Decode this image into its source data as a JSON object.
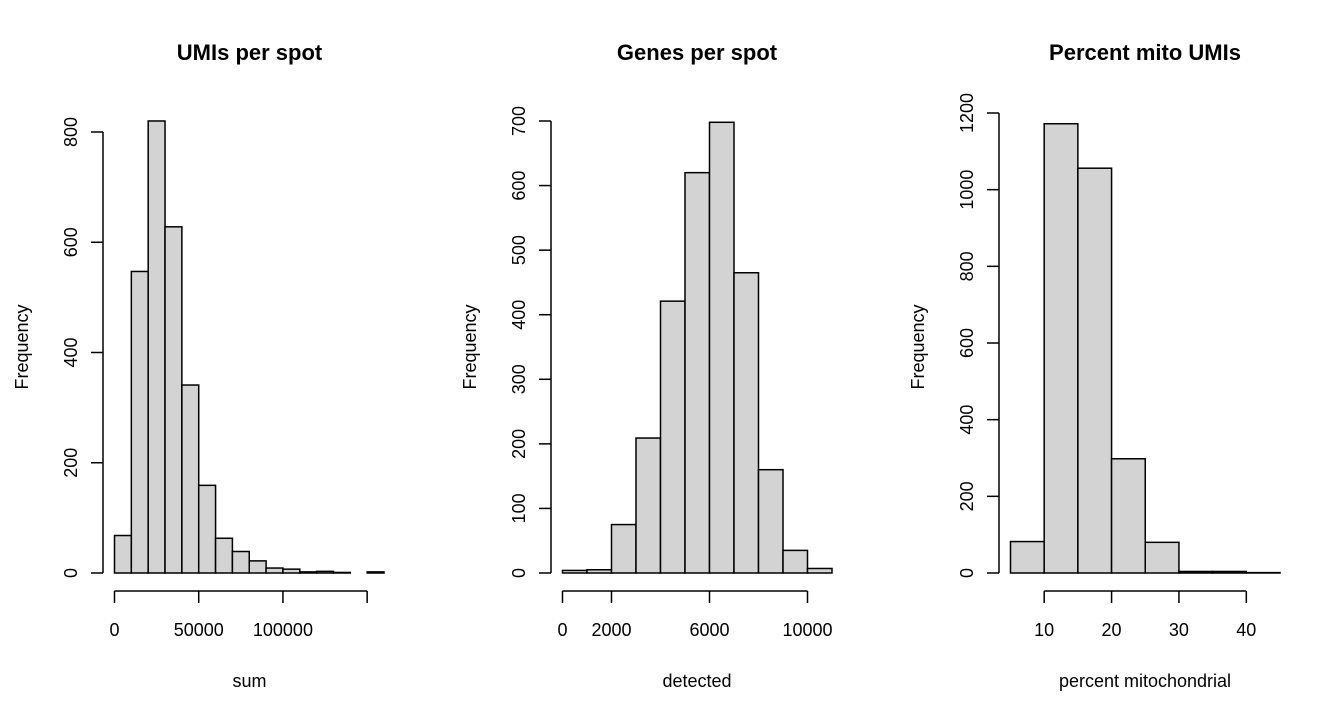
{
  "chart_data": [
    {
      "type": "bar",
      "title": "UMIs per spot",
      "xlabel": "sum",
      "ylabel": "Frequency",
      "bin_edges": [
        0,
        10000,
        20000,
        30000,
        40000,
        50000,
        60000,
        70000,
        80000,
        90000,
        100000,
        110000,
        120000,
        130000,
        140000,
        150000,
        160000
      ],
      "values": [
        68,
        547,
        820,
        628,
        341,
        159,
        63,
        39,
        22,
        9,
        7,
        2,
        3,
        1,
        0,
        2
      ],
      "x_ticks": [
        0,
        50000,
        100000,
        150000
      ],
      "x_tick_labels": [
        "0",
        "50000",
        "100000",
        ""
      ],
      "y_ticks": [
        0,
        200,
        400,
        600,
        800
      ],
      "y_tick_labels": [
        "0",
        "200",
        "400",
        "600",
        "800"
      ],
      "xlim": [
        0,
        160000
      ],
      "ylim": [
        0,
        800
      ],
      "grid": false
    },
    {
      "type": "bar",
      "title": "Genes per spot",
      "xlabel": "detected",
      "ylabel": "Frequency",
      "bin_edges": [
        0,
        1000,
        2000,
        3000,
        4000,
        5000,
        6000,
        7000,
        8000,
        9000,
        10000,
        11000
      ],
      "values": [
        4,
        5,
        75,
        209,
        421,
        620,
        698,
        465,
        160,
        35,
        7
      ],
      "x_ticks": [
        0,
        2000,
        6000,
        10000
      ],
      "x_tick_labels": [
        "0",
        "2000",
        "6000",
        "10000"
      ],
      "y_ticks": [
        0,
        100,
        200,
        300,
        400,
        500,
        600,
        700
      ],
      "y_tick_labels": [
        "0",
        "100",
        "200",
        "300",
        "400",
        "500",
        "600",
        "700"
      ],
      "xlim": [
        0,
        11000
      ],
      "ylim": [
        0,
        700
      ],
      "grid": false
    },
    {
      "type": "bar",
      "title": "Percent mito UMIs",
      "xlabel": "percent mitochondrial",
      "ylabel": "Frequency",
      "bin_edges": [
        5,
        10,
        15,
        20,
        25,
        30,
        35,
        40,
        45
      ],
      "values": [
        82,
        1172,
        1056,
        298,
        80,
        4,
        4,
        1
      ],
      "x_ticks": [
        10,
        20,
        30,
        40
      ],
      "x_tick_labels": [
        "10",
        "20",
        "30",
        "40"
      ],
      "y_ticks": [
        0,
        200,
        400,
        600,
        800,
        1000,
        1200
      ],
      "y_tick_labels": [
        "0",
        "200",
        "400",
        "600",
        "800",
        "1000",
        "1200"
      ],
      "xlim": [
        5,
        45
      ],
      "ylim": [
        0,
        1200
      ],
      "grid": false
    }
  ]
}
